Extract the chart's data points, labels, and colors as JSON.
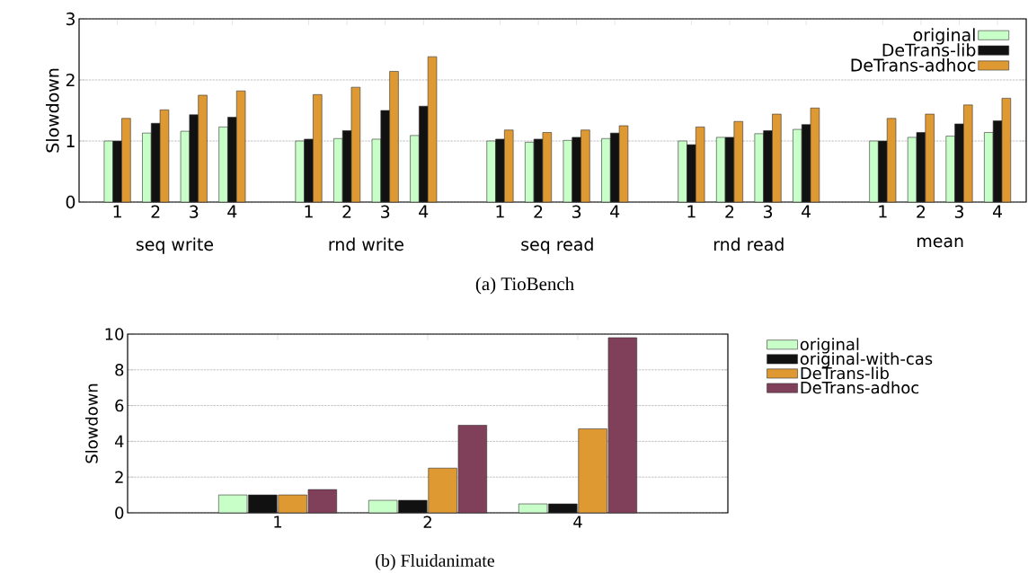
{
  "chart_data": [
    {
      "type": "bar",
      "title": "(a) TioBench",
      "ylabel": "Slowdown",
      "categories": [
        "1",
        "2",
        "3",
        "4",
        null,
        "1",
        "2",
        "3",
        "4",
        null,
        "1",
        "2",
        "3",
        "4",
        null,
        "1",
        "2",
        "3",
        "4",
        null,
        "1",
        "2",
        "3",
        "4"
      ],
      "series": [
        {
          "name": "original",
          "color": "#c8ffc8",
          "values": [
            1.0,
            1.13,
            1.16,
            1.23,
            null,
            1.0,
            1.04,
            1.03,
            1.09,
            null,
            1.0,
            0.98,
            1.01,
            1.04,
            null,
            1.0,
            1.06,
            1.12,
            1.19,
            null,
            1.0,
            1.06,
            1.08,
            1.14
          ]
        },
        {
          "name": "DeTrans-lib",
          "color": "#111111",
          "values": [
            1.0,
            1.29,
            1.43,
            1.39,
            null,
            1.03,
            1.17,
            1.5,
            1.57,
            null,
            1.03,
            1.03,
            1.06,
            1.13,
            null,
            0.94,
            1.06,
            1.17,
            1.27,
            null,
            1.0,
            1.14,
            1.28,
            1.33
          ]
        },
        {
          "name": "DeTrans-adhoc",
          "color": "#de9932",
          "values": [
            1.37,
            1.51,
            1.75,
            1.82,
            null,
            1.76,
            1.88,
            2.14,
            2.38,
            null,
            1.18,
            1.14,
            1.18,
            1.25,
            null,
            1.23,
            1.32,
            1.44,
            1.54,
            null,
            1.37,
            1.44,
            1.59,
            1.7
          ]
        }
      ],
      "annotations": [
        "seq write",
        "rnd write",
        "seq read",
        "rnd read",
        "mean"
      ],
      "ylim": [
        0,
        3
      ],
      "yticks": [
        0,
        1,
        2,
        3
      ],
      "grid": "y",
      "legend": "top right"
    },
    {
      "type": "bar",
      "title": "(b) Fluidanimate",
      "ylabel": "Slowdown",
      "categories": [
        "1",
        "2",
        "4"
      ],
      "series": [
        {
          "name": "original",
          "color": "#c8ffc8",
          "values": [
            1.0,
            0.7,
            0.5
          ]
        },
        {
          "name": "original-with-cas",
          "color": "#111111",
          "values": [
            1.0,
            0.7,
            0.5
          ]
        },
        {
          "name": "DeTrans-lib",
          "color": "#de9932",
          "values": [
            1.0,
            2.5,
            4.7
          ]
        },
        {
          "name": "DeTrans-adhoc",
          "color": "#80405a",
          "values": [
            1.3,
            4.9,
            9.8
          ]
        }
      ],
      "ylim": [
        0,
        10
      ],
      "yticks": [
        0,
        2,
        4,
        6,
        8,
        10
      ],
      "grid": "y",
      "legend": "right"
    }
  ]
}
